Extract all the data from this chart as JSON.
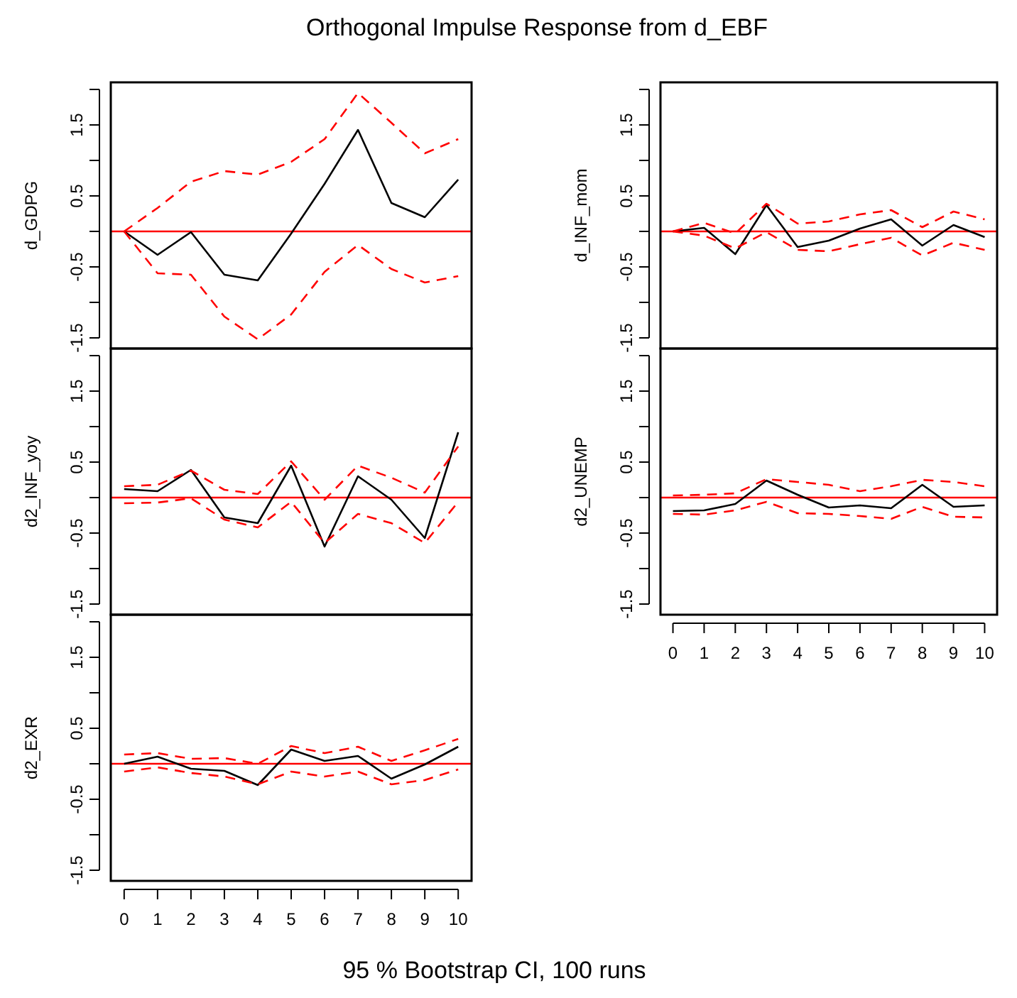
{
  "chart_data": [
    {
      "type": "line",
      "title": "Orthogonal Impulse Response from d_EBF",
      "ylabel": "d_GDPG",
      "annotations": [
        "95 % Bootstrap CI,  100 runs"
      ],
      "x": [
        0,
        1,
        2,
        3,
        4,
        5,
        6,
        7,
        8,
        9,
        10
      ],
      "xlim": [
        -0.4,
        10.4
      ],
      "xticks": [
        0,
        1,
        2,
        3,
        4,
        5,
        6,
        7,
        8,
        9,
        10
      ],
      "ylim": [
        -1.65,
        2.1
      ],
      "yticks": [
        -1.5,
        {
          "value": -1,
          "label": null
        },
        -0.5,
        {
          "value": 0,
          "label": null
        },
        0.5,
        {
          "value": 1,
          "label": null
        },
        1.5,
        {
          "value": 2,
          "label": null
        }
      ],
      "tick_labels": "y",
      "ref_lines": [
        {
          "axis": "y",
          "value": 0,
          "color": "#ff0000"
        }
      ],
      "series": [
        {
          "color": "#000000",
          "line_style": "solid",
          "values": [
            0,
            -0.33,
            -0.01,
            -0.61,
            -0.69,
            -0.03,
            0.67,
            1.43,
            0.4,
            0.2,
            0.73
          ]
        },
        {
          "color": "#ff0000",
          "line_style": "dashed",
          "values": [
            0,
            0.33,
            0.7,
            0.85,
            0.8,
            0.98,
            1.3,
            1.95,
            1.53,
            1.1,
            1.3
          ]
        },
        {
          "color": "#ff0000",
          "line_style": "dashed",
          "values": [
            0,
            -0.59,
            -0.61,
            -1.2,
            -1.52,
            -1.17,
            -0.57,
            -0.19,
            -0.53,
            -0.72,
            -0.63
          ]
        }
      ]
    },
    {
      "type": "line",
      "ylabel": "d_INF_mom",
      "x": [
        0,
        1,
        2,
        3,
        4,
        5,
        6,
        7,
        8,
        9,
        10
      ],
      "xlim": [
        -0.4,
        10.4
      ],
      "xticks": [
        0,
        1,
        2,
        3,
        4,
        5,
        6,
        7,
        8,
        9,
        10
      ],
      "ylim": [
        -1.65,
        2.1
      ],
      "yticks": [
        -1.5,
        {
          "value": -1,
          "label": null
        },
        -0.5,
        {
          "value": 0,
          "label": null
        },
        0.5,
        {
          "value": 1,
          "label": null
        },
        1.5,
        {
          "value": 2,
          "label": null
        }
      ],
      "tick_labels": "y",
      "ref_lines": [
        {
          "axis": "y",
          "value": 0,
          "color": "#ff0000"
        }
      ],
      "series": [
        {
          "color": "#000000",
          "line_style": "solid",
          "values": [
            0,
            0.05,
            -0.32,
            0.37,
            -0.22,
            -0.13,
            0.04,
            0.17,
            -0.2,
            0.09,
            -0.08
          ]
        },
        {
          "color": "#ff0000",
          "line_style": "dashed",
          "values": [
            0,
            0.12,
            -0.03,
            0.39,
            0.11,
            0.14,
            0.24,
            0.3,
            0.06,
            0.28,
            0.17
          ]
        },
        {
          "color": "#ff0000",
          "line_style": "dashed",
          "values": [
            0,
            -0.06,
            -0.24,
            -0.01,
            -0.26,
            -0.28,
            -0.18,
            -0.09,
            -0.34,
            -0.16,
            -0.26
          ]
        }
      ]
    },
    {
      "type": "line",
      "ylabel": "d2_INF_yoy",
      "x": [
        0,
        1,
        2,
        3,
        4,
        5,
        6,
        7,
        8,
        9,
        10
      ],
      "xlim": [
        -0.4,
        10.4
      ],
      "xticks": [
        0,
        1,
        2,
        3,
        4,
        5,
        6,
        7,
        8,
        9,
        10
      ],
      "ylim": [
        -1.65,
        2.1
      ],
      "yticks": [
        -1.5,
        {
          "value": -1,
          "label": null
        },
        -0.5,
        {
          "value": 0,
          "label": null
        },
        0.5,
        {
          "value": 1,
          "label": null
        },
        1.5,
        {
          "value": 2,
          "label": null
        }
      ],
      "tick_labels": "y",
      "ref_lines": [
        {
          "axis": "y",
          "value": 0,
          "color": "#ff0000"
        }
      ],
      "series": [
        {
          "color": "#000000",
          "line_style": "solid",
          "values": [
            0.12,
            0.09,
            0.39,
            -0.28,
            -0.36,
            0.45,
            -0.69,
            0.3,
            -0.03,
            -0.57,
            0.92
          ]
        },
        {
          "color": "#ff0000",
          "line_style": "dashed",
          "values": [
            0.16,
            0.18,
            0.38,
            0.11,
            0.05,
            0.51,
            -0.03,
            0.45,
            0.28,
            0.07,
            0.72
          ]
        },
        {
          "color": "#ff0000",
          "line_style": "dashed",
          "values": [
            -0.08,
            -0.07,
            -0.01,
            -0.31,
            -0.42,
            -0.06,
            -0.64,
            -0.23,
            -0.36,
            -0.64,
            -0.06
          ]
        }
      ]
    },
    {
      "type": "line",
      "ylabel": "d2_UNEMP",
      "x": [
        0,
        1,
        2,
        3,
        4,
        5,
        6,
        7,
        8,
        9,
        10
      ],
      "xlim": [
        -0.4,
        10.4
      ],
      "xticks": [
        0,
        1,
        2,
        3,
        4,
        5,
        6,
        7,
        8,
        9,
        10
      ],
      "ylim": [
        -1.65,
        2.1
      ],
      "yticks": [
        -1.5,
        {
          "value": -1,
          "label": null
        },
        -0.5,
        {
          "value": 0,
          "label": null
        },
        0.5,
        {
          "value": 1,
          "label": null
        },
        1.5,
        {
          "value": 2,
          "label": null
        }
      ],
      "ref_lines": [
        {
          "axis": "y",
          "value": 0,
          "color": "#ff0000"
        }
      ],
      "series": [
        {
          "color": "#000000",
          "line_style": "solid",
          "values": [
            -0.19,
            -0.18,
            -0.09,
            0.24,
            0.04,
            -0.14,
            -0.11,
            -0.15,
            0.18,
            -0.13,
            -0.11
          ]
        },
        {
          "color": "#ff0000",
          "line_style": "dashed",
          "values": [
            0.03,
            0.04,
            0.06,
            0.26,
            0.22,
            0.18,
            0.09,
            0.16,
            0.25,
            0.22,
            0.16
          ]
        },
        {
          "color": "#ff0000",
          "line_style": "dashed",
          "values": [
            -0.23,
            -0.24,
            -0.18,
            -0.06,
            -0.22,
            -0.23,
            -0.26,
            -0.3,
            -0.13,
            -0.27,
            -0.28
          ]
        }
      ]
    },
    {
      "type": "line",
      "ylabel": "d2_EXR",
      "x": [
        0,
        1,
        2,
        3,
        4,
        5,
        6,
        7,
        8,
        9,
        10
      ],
      "xlim": [
        -0.4,
        10.4
      ],
      "xticks": [
        0,
        1,
        2,
        3,
        4,
        5,
        6,
        7,
        8,
        9,
        10
      ],
      "ylim": [
        -1.65,
        2.1
      ],
      "yticks": [
        -1.5,
        {
          "value": -1,
          "label": null
        },
        -0.5,
        {
          "value": 0,
          "label": null
        },
        0.5,
        {
          "value": 1,
          "label": null
        },
        1.5,
        {
          "value": 2,
          "label": null
        }
      ],
      "ref_lines": [
        {
          "axis": "y",
          "value": 0,
          "color": "#ff0000"
        }
      ],
      "series": [
        {
          "color": "#000000",
          "line_style": "solid",
          "values": [
            0,
            0.1,
            -0.07,
            -0.1,
            -0.3,
            0.2,
            0.04,
            0.11,
            -0.21,
            -0.01,
            0.24
          ]
        },
        {
          "color": "#ff0000",
          "line_style": "dashed",
          "values": [
            0.13,
            0.15,
            0.07,
            0.08,
            0,
            0.25,
            0.15,
            0.24,
            0.04,
            0.19,
            0.35
          ]
        },
        {
          "color": "#ff0000",
          "line_style": "dashed",
          "values": [
            -0.11,
            -0.05,
            -0.13,
            -0.18,
            -0.29,
            -0.11,
            -0.18,
            -0.11,
            -0.29,
            -0.23,
            -0.08
          ]
        }
      ]
    }
  ]
}
